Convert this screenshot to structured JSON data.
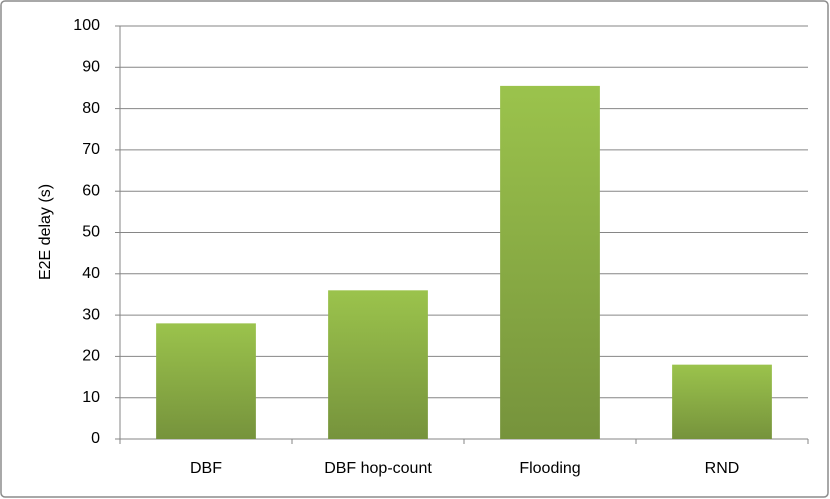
{
  "chart_data": {
    "type": "bar",
    "y_label": "E2E delay (s)",
    "categories": [
      "DBF",
      "DBF hop-count",
      "Flooding",
      "RND"
    ],
    "values": [
      28,
      36,
      85.5,
      18
    ],
    "color": "#9bc34c",
    "ylim": [
      0,
      100
    ],
    "yticks": [
      0,
      10,
      20,
      30,
      40,
      50,
      60,
      70,
      80,
      90,
      100
    ],
    "grid": true
  }
}
